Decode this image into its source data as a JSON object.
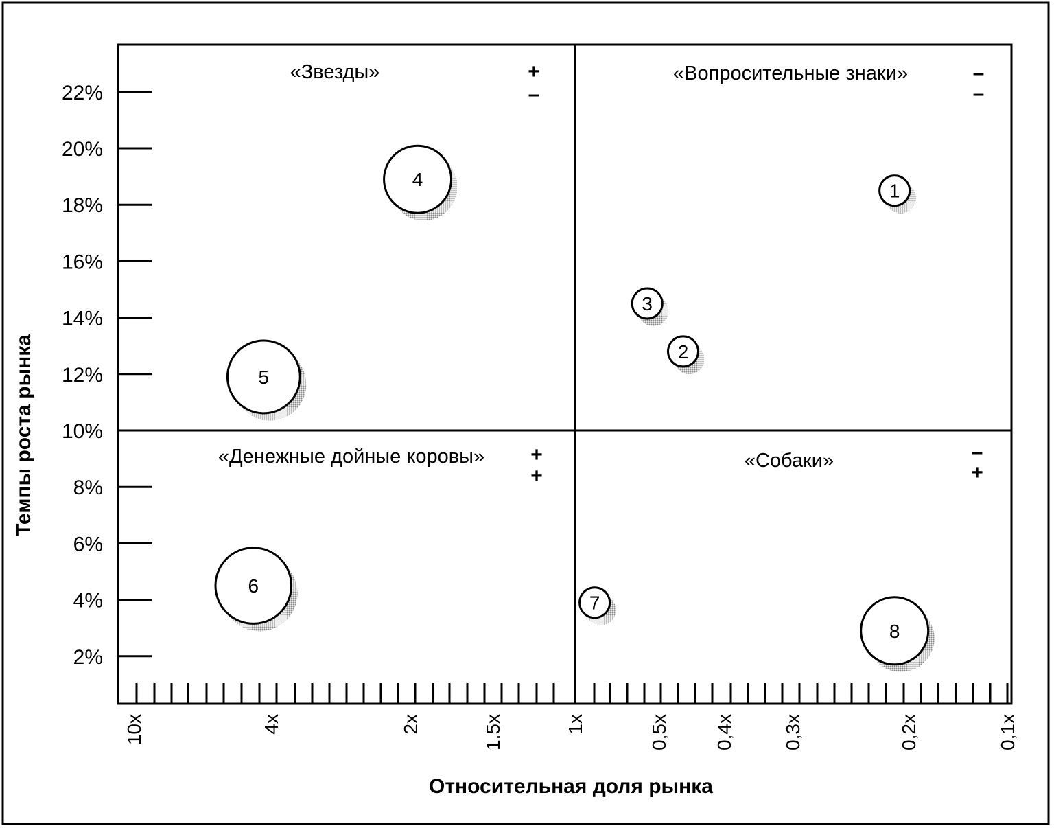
{
  "chart_data": {
    "type": "scatter",
    "xlabel": "Относительная доля рынка",
    "ylabel": "Темпы роста рынка",
    "x_scale": "log",
    "x_reversed": true,
    "xlim": [
      10,
      0.1
    ],
    "ylim": [
      0,
      23
    ],
    "x_ticks": [
      {
        "value": 10,
        "label": "10x"
      },
      {
        "value": 4,
        "label": "4x"
      },
      {
        "value": 2,
        "label": "2x"
      },
      {
        "value": 1.5,
        "label": "1.5x"
      },
      {
        "value": 1,
        "label": "1x"
      },
      {
        "value": 0.5,
        "label": "0,5x"
      },
      {
        "value": 0.4,
        "label": "0,4x"
      },
      {
        "value": 0.3,
        "label": "0,3x"
      },
      {
        "value": 0.2,
        "label": "0,2x"
      },
      {
        "value": 0.1,
        "label": "0,1x"
      }
    ],
    "y_ticks": [
      {
        "value": 22,
        "label": "22%"
      },
      {
        "value": 20,
        "label": "20%"
      },
      {
        "value": 18,
        "label": "18%"
      },
      {
        "value": 16,
        "label": "16%"
      },
      {
        "value": 14,
        "label": "14%"
      },
      {
        "value": 12,
        "label": "12%"
      },
      {
        "value": 10,
        "label": "10%"
      },
      {
        "value": 8,
        "label": "8%"
      },
      {
        "value": 6,
        "label": "6%"
      },
      {
        "value": 4,
        "label": "4%"
      },
      {
        "value": 2,
        "label": "2%"
      }
    ],
    "quadrants": [
      {
        "id": "stars",
        "label": "«Звезды»",
        "signs": [
          "+",
          "–"
        ]
      },
      {
        "id": "question",
        "label": "«Вопросительные знаки»",
        "signs": [
          "–",
          "–"
        ]
      },
      {
        "id": "cows",
        "label": "«Денежные дойные коровы»",
        "signs": [
          "+",
          "+"
        ]
      },
      {
        "id": "dogs",
        "label": "«Собаки»",
        "signs": [
          "–",
          "+"
        ]
      }
    ],
    "bubbles": [
      {
        "label": "1",
        "x": 0.21,
        "y": 18.5,
        "size": 0.3
      },
      {
        "label": "2",
        "x": 0.46,
        "y": 12.8,
        "size": 0.3
      },
      {
        "label": "3",
        "x": 0.55,
        "y": 14.5,
        "size": 0.3
      },
      {
        "label": "4",
        "x": 1.95,
        "y": 18.9,
        "size": 1.0
      },
      {
        "label": "5",
        "x": 4.2,
        "y": 11.9,
        "size": 1.3
      },
      {
        "label": "6",
        "x": 4.5,
        "y": 4.5,
        "size": 1.5
      },
      {
        "label": "7",
        "x": 0.85,
        "y": 3.9,
        "size": 0.3
      },
      {
        "label": "8",
        "x": 0.21,
        "y": 2.9,
        "size": 1.0
      }
    ],
    "grid": false
  }
}
